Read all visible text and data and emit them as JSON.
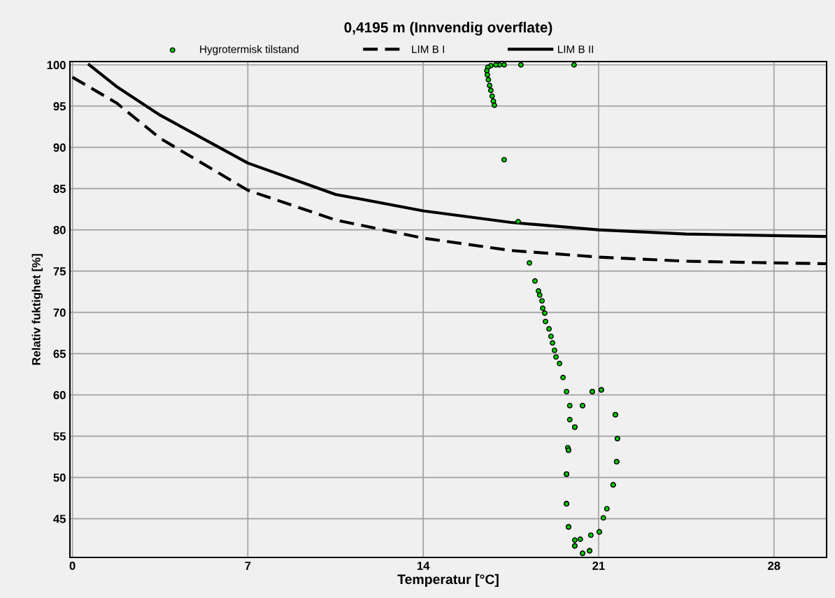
{
  "chart_data": {
    "type": "scatter",
    "title": "0,4195 m (Innvendig overflate)",
    "xlabel": "Temperatur [°C]",
    "ylabel": "Relativ fuktighet [%]",
    "xlim": [
      -0.1,
      30.1
    ],
    "ylim": [
      40.3,
      100.4
    ],
    "xticks": [
      0,
      7,
      14,
      21,
      28
    ],
    "yticks": [
      45,
      50,
      55,
      60,
      65,
      70,
      75,
      80,
      85,
      90,
      95,
      100
    ],
    "grid": true,
    "legend": "top",
    "series": [
      {
        "name": "Hygrotermisk tilstand",
        "marker": "circle",
        "color": "#00cc00",
        "x": [
          20.02,
          17.9,
          17.23,
          17.04,
          16.9,
          16.7,
          16.58,
          16.54,
          16.56,
          16.6,
          16.65,
          16.7,
          16.75,
          16.8,
          16.84,
          17.23,
          17.79,
          18.24,
          18.46,
          18.6,
          18.65,
          18.74,
          18.77,
          18.85,
          18.88,
          19.02,
          19.1,
          19.16,
          19.24,
          19.3,
          19.44,
          19.58,
          19.72,
          19.85,
          19.85,
          19.77,
          19.72,
          19.72,
          19.8,
          20.05,
          20.36,
          20.64,
          21.03,
          21.33,
          21.58,
          21.72,
          21.75,
          21.67,
          21.11,
          20.75,
          20.36,
          20.05,
          19.8,
          19.72,
          19.72,
          19.8,
          20.05,
          20.27,
          20.69,
          21.19,
          21.58,
          21.72,
          21.75,
          21.67,
          21.11,
          20.75,
          20.36,
          20.05,
          19.8,
          19.72,
          19.72,
          19.8,
          20.05,
          20.36,
          20.64,
          21.03
        ],
        "values": [
          100,
          100,
          100,
          100,
          100,
          99.9,
          99.7,
          99.3,
          98.8,
          98.2,
          97.5,
          96.9,
          96.2,
          95.6,
          95.1,
          88.5,
          81.0,
          76.0,
          73.8,
          72.6,
          72.1,
          71.4,
          70.5,
          69.9,
          68.9,
          68.0,
          67.1,
          66.3,
          65.4,
          64.6,
          63.8,
          62.1,
          60.4,
          58.7,
          57.0,
          53.6,
          50.4,
          46.8,
          44.0,
          41.7,
          40.8,
          41.1,
          43.4,
          46.2,
          49.1,
          51.9,
          54.7,
          57.6,
          60.6,
          60.4,
          58.7,
          56.1,
          53.3,
          50.4,
          46.8,
          44.0,
          42.4,
          42.5,
          43.0,
          45.1,
          49.1,
          51.9,
          54.7,
          57.6,
          60.6,
          60.4,
          58.7,
          56.1,
          53.3,
          50.4,
          46.8,
          44.0,
          41.7,
          40.8,
          41.1,
          43.4
        ]
      },
      {
        "name": "LIM B I",
        "type": "line",
        "line_style": "dashed",
        "marker": "none",
        "color": "#000000",
        "x": [
          0,
          1.75,
          3.5,
          7,
          10.5,
          14,
          17.5,
          21,
          24.5,
          28,
          30.1
        ],
        "values": [
          98.5,
          95.4,
          91.1,
          84.8,
          81.2,
          79.0,
          77.5,
          76.7,
          76.2,
          76.0,
          75.9
        ]
      },
      {
        "name": "LIM B II",
        "type": "line",
        "line_style": "solid",
        "marker": "none",
        "color": "#000000",
        "x": [
          0.67,
          1.75,
          3.5,
          7,
          10.5,
          14,
          17.5,
          21,
          24.5,
          28,
          30.1
        ],
        "values": [
          100,
          97.4,
          93.9,
          88.1,
          84.3,
          82.3,
          80.9,
          80.0,
          79.5,
          79.3,
          79.2
        ]
      }
    ]
  }
}
